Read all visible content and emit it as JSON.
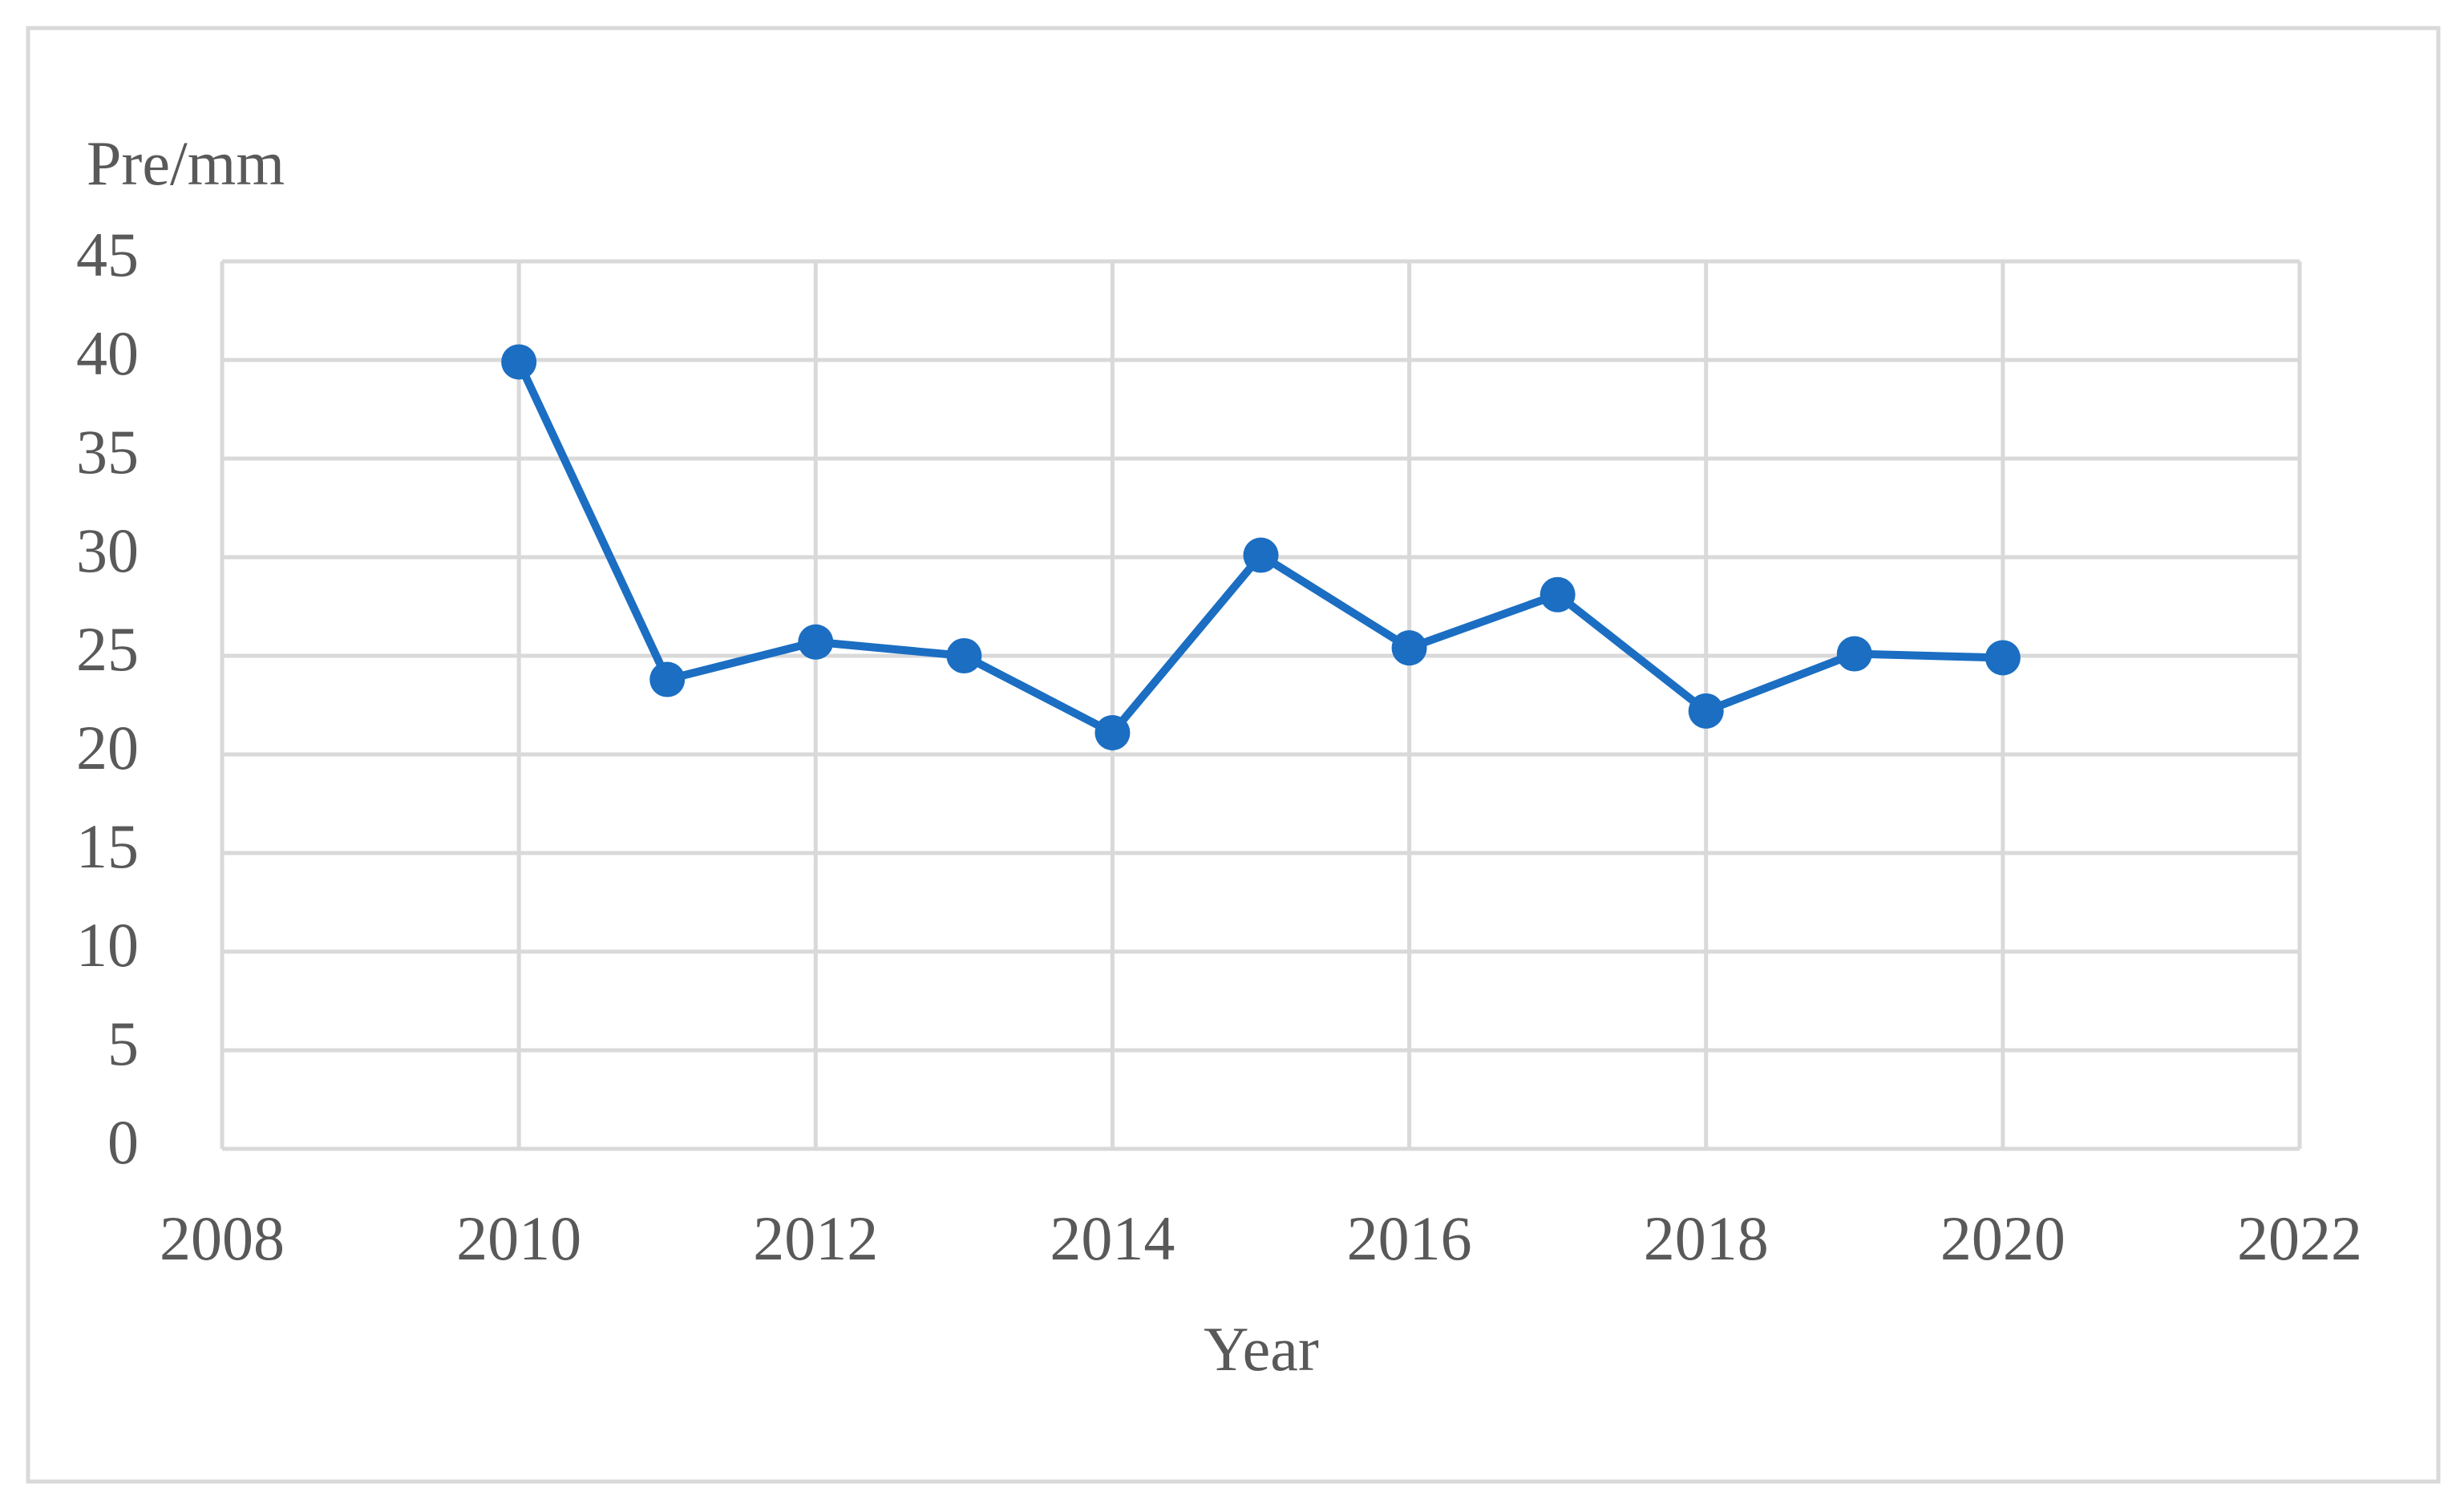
{
  "chart_data": {
    "type": "line",
    "y_label": "Pre/mm",
    "x_label": "Year",
    "x": [
      2010,
      2011,
      2012,
      2013,
      2014,
      2015,
      2016,
      2017,
      2018,
      2019,
      2020
    ],
    "series": [
      {
        "name": "Pre",
        "color": "#1b6ec2",
        "values": [
          39.9,
          23.8,
          25.7,
          25.0,
          21.1,
          30.1,
          25.4,
          28.1,
          22.2,
          25.1,
          24.9
        ]
      }
    ],
    "xlim": [
      2008,
      2022
    ],
    "xticks": [
      2008,
      2010,
      2012,
      2014,
      2016,
      2018,
      2020,
      2022
    ],
    "ylim": [
      0,
      45
    ],
    "yticks": [
      0,
      5,
      10,
      15,
      20,
      25,
      30,
      35,
      40,
      45
    ],
    "grid": true
  }
}
